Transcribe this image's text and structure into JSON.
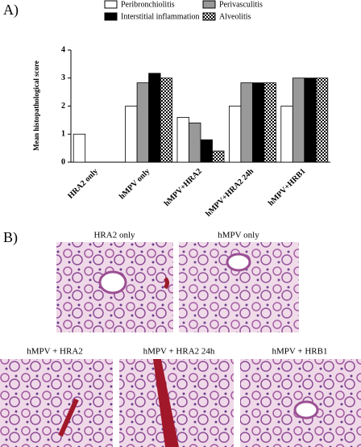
{
  "chart_data": {
    "type": "bar",
    "y_label": "Mean histopathological score",
    "categories": [
      "HRA2 only",
      "hMPV only",
      "hMPV+HRA2",
      "hMPV+HRA2 24h",
      "hMPV+HRB1"
    ],
    "series": [
      {
        "name": "Peribronchiolitis",
        "color": "#ffffff",
        "values": [
          1,
          2,
          1.6,
          2,
          2
        ]
      },
      {
        "name": "Perivasculitis",
        "color": "#999999",
        "values": [
          0,
          2.83,
          1.4,
          2.83,
          3
        ]
      },
      {
        "name": "Interstitial inflammation",
        "color": "#000000",
        "values": [
          0,
          3.17,
          0.8,
          2.83,
          3
        ]
      },
      {
        "name": "Alveolitis",
        "color": "#000000",
        "pattern": "checker",
        "values": [
          0,
          3,
          0.4,
          2.83,
          3
        ]
      }
    ],
    "ylim": [
      0,
      4
    ],
    "yticks": [
      0,
      1,
      2,
      3,
      4
    ],
    "grid": false
  },
  "panel_labels": [
    "A)",
    "B)"
  ],
  "images": [
    {
      "caption": "HRA2 only"
    },
    {
      "caption": "hMPV only"
    },
    {
      "caption": "hMPV + HRA2"
    },
    {
      "caption": "hMPV + HRA2 24h"
    },
    {
      "caption": "hMPV +  HRB1"
    }
  ]
}
